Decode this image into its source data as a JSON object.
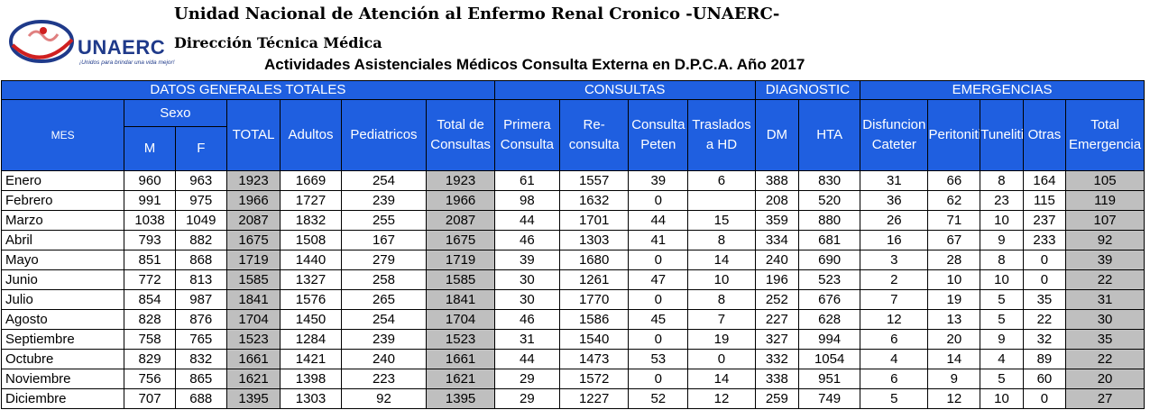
{
  "header": {
    "logo_text": "UNAERC",
    "logo_tagline": "¡Unidos para brindar una vida mejor!",
    "title": "Unidad Nacional de Atención al Enfermo Renal Cronico -UNAERC-",
    "subtitle": "Dirección Técnica Médica",
    "report_title": "Actividades Asistenciales Médicos Consulta Externa en D.P.C.A. Año 2017"
  },
  "colors": {
    "header_blue": "#1f5fe0",
    "total_gray": "#bfbfbf",
    "logo_blue": "#1f3a8a",
    "logo_red": "#d02020"
  },
  "groups": {
    "datos": "DATOS GENERALES TOTALES",
    "consultas": "CONSULTAS",
    "diagnostic": "DIAGNOSTIC",
    "emergencias": "EMERGENCIAS"
  },
  "columns": {
    "mes": "MES",
    "sexo": "Sexo",
    "m": "M",
    "f": "F",
    "total": "TOTAL",
    "adultos": "Adultos",
    "pediatricos": "Pediatricos",
    "total_consultas": "Total de Consultas",
    "primera": "Primera Consulta",
    "reconsulta": "Re-consulta",
    "peten": "Consulta Peten",
    "traslados": "Traslados a HD",
    "dm": "DM",
    "hta": "HTA",
    "disfuncion": "Disfuncion Cateter",
    "peritonitis": "Peritonitis",
    "tunelitis": "Tunelitis",
    "otras": "Otras",
    "total_emergencia": "Total Emergencia"
  },
  "rows": [
    {
      "mes": "Enero",
      "m": "960",
      "f": "963",
      "total": "1923",
      "adultos": "1669",
      "pediatricos": "254",
      "total_consultas": "1923",
      "primera": "61",
      "reconsulta": "1557",
      "peten": "39",
      "traslados": "6",
      "dm": "388",
      "hta": "830",
      "disfuncion": "31",
      "peritonitis": "66",
      "tunelitis": "8",
      "otras": "164",
      "total_emergencia": "105"
    },
    {
      "mes": "Febrero",
      "m": "991",
      "f": "975",
      "total": "1966",
      "adultos": "1727",
      "pediatricos": "239",
      "total_consultas": "1966",
      "primera": "98",
      "reconsulta": "1632",
      "peten": "0",
      "traslados": "",
      "dm": "208",
      "hta": "520",
      "disfuncion": "36",
      "peritonitis": "62",
      "tunelitis": "23",
      "otras": "115",
      "total_emergencia": "119"
    },
    {
      "mes": "Marzo",
      "m": "1038",
      "f": "1049",
      "total": "2087",
      "adultos": "1832",
      "pediatricos": "255",
      "total_consultas": "2087",
      "primera": "44",
      "reconsulta": "1701",
      "peten": "44",
      "traslados": "15",
      "dm": "359",
      "hta": "880",
      "disfuncion": "26",
      "peritonitis": "71",
      "tunelitis": "10",
      "otras": "237",
      "total_emergencia": "107"
    },
    {
      "mes": "Abril",
      "m": "793",
      "f": "882",
      "total": "1675",
      "adultos": "1508",
      "pediatricos": "167",
      "total_consultas": "1675",
      "primera": "46",
      "reconsulta": "1303",
      "peten": "41",
      "traslados": "8",
      "dm": "334",
      "hta": "681",
      "disfuncion": "16",
      "peritonitis": "67",
      "tunelitis": "9",
      "otras": "233",
      "total_emergencia": "92"
    },
    {
      "mes": "Mayo",
      "m": "851",
      "f": "868",
      "total": "1719",
      "adultos": "1440",
      "pediatricos": "279",
      "total_consultas": "1719",
      "primera": "39",
      "reconsulta": "1680",
      "peten": "0",
      "traslados": "14",
      "dm": "240",
      "hta": "690",
      "disfuncion": "3",
      "peritonitis": "28",
      "tunelitis": "8",
      "otras": "0",
      "total_emergencia": "39"
    },
    {
      "mes": "Junio",
      "m": "772",
      "f": "813",
      "total": "1585",
      "adultos": "1327",
      "pediatricos": "258",
      "total_consultas": "1585",
      "primera": "30",
      "reconsulta": "1261",
      "peten": "47",
      "traslados": "10",
      "dm": "196",
      "hta": "523",
      "disfuncion": "2",
      "peritonitis": "10",
      "tunelitis": "10",
      "otras": "0",
      "total_emergencia": "22"
    },
    {
      "mes": "Julio",
      "m": "854",
      "f": "987",
      "total": "1841",
      "adultos": "1576",
      "pediatricos": "265",
      "total_consultas": "1841",
      "primera": "30",
      "reconsulta": "1770",
      "peten": "0",
      "traslados": "8",
      "dm": "252",
      "hta": "676",
      "disfuncion": "7",
      "peritonitis": "19",
      "tunelitis": "5",
      "otras": "35",
      "total_emergencia": "31"
    },
    {
      "mes": "Agosto",
      "m": "828",
      "f": "876",
      "total": "1704",
      "adultos": "1450",
      "pediatricos": "254",
      "total_consultas": "1704",
      "primera": "46",
      "reconsulta": "1586",
      "peten": "45",
      "traslados": "7",
      "dm": "227",
      "hta": "628",
      "disfuncion": "12",
      "peritonitis": "13",
      "tunelitis": "5",
      "otras": "22",
      "total_emergencia": "30"
    },
    {
      "mes": "Septiembre",
      "m": "758",
      "f": "765",
      "total": "1523",
      "adultos": "1284",
      "pediatricos": "239",
      "total_consultas": "1523",
      "primera": "31",
      "reconsulta": "1540",
      "peten": "0",
      "traslados": "19",
      "dm": "327",
      "hta": "994",
      "disfuncion": "6",
      "peritonitis": "20",
      "tunelitis": "9",
      "otras": "32",
      "total_emergencia": "35"
    },
    {
      "mes": "Octubre",
      "m": "829",
      "f": "832",
      "total": "1661",
      "adultos": "1421",
      "pediatricos": "240",
      "total_consultas": "1661",
      "primera": "44",
      "reconsulta": "1473",
      "peten": "53",
      "traslados": "0",
      "dm": "332",
      "hta": "1054",
      "disfuncion": "4",
      "peritonitis": "14",
      "tunelitis": "4",
      "otras": "89",
      "total_emergencia": "22"
    },
    {
      "mes": "Noviembre",
      "m": "756",
      "f": "865",
      "total": "1621",
      "adultos": "1398",
      "pediatricos": "223",
      "total_consultas": "1621",
      "primera": "29",
      "reconsulta": "1572",
      "peten": "0",
      "traslados": "14",
      "dm": "338",
      "hta": "951",
      "disfuncion": "6",
      "peritonitis": "9",
      "tunelitis": "5",
      "otras": "60",
      "total_emergencia": "20"
    },
    {
      "mes": "Diciembre",
      "m": "707",
      "f": "688",
      "total": "1395",
      "adultos": "1303",
      "pediatricos": "92",
      "total_consultas": "1395",
      "primera": "29",
      "reconsulta": "1227",
      "peten": "52",
      "traslados": "12",
      "dm": "259",
      "hta": "749",
      "disfuncion": "5",
      "peritonitis": "12",
      "tunelitis": "10",
      "otras": "0",
      "total_emergencia": "27"
    }
  ]
}
